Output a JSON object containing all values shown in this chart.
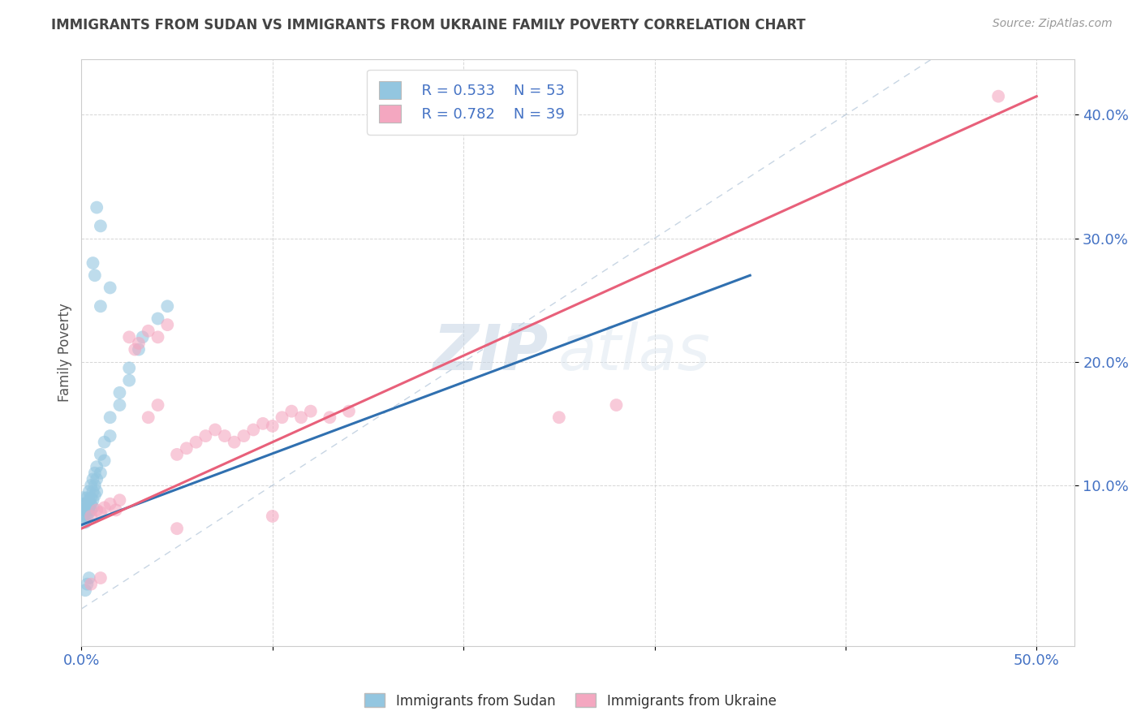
{
  "title": "IMMIGRANTS FROM SUDAN VS IMMIGRANTS FROM UKRAINE FAMILY POVERTY CORRELATION CHART",
  "source": "Source: ZipAtlas.com",
  "ylabel": "Family Poverty",
  "xlim": [
    0.0,
    0.52
  ],
  "ylim": [
    -0.03,
    0.445
  ],
  "sudan_color": "#93c6e0",
  "ukraine_color": "#f4a7c0",
  "sudan_line_color": "#3070b0",
  "ukraine_line_color": "#e8607a",
  "legend_sudan_R": "R = 0.533",
  "legend_sudan_N": "N = 53",
  "legend_ukraine_R": "R = 0.782",
  "legend_ukraine_N": "N = 39",
  "watermark_zip": "ZIP",
  "watermark_atlas": "atlas",
  "sudan_scatter": [
    [
      0.001,
      0.075
    ],
    [
      0.001,
      0.09
    ],
    [
      0.001,
      0.085
    ],
    [
      0.001,
      0.08
    ],
    [
      0.002,
      0.085
    ],
    [
      0.002,
      0.08
    ],
    [
      0.002,
      0.075
    ],
    [
      0.002,
      0.07
    ],
    [
      0.003,
      0.09
    ],
    [
      0.003,
      0.085
    ],
    [
      0.003,
      0.08
    ],
    [
      0.003,
      0.075
    ],
    [
      0.004,
      0.095
    ],
    [
      0.004,
      0.088
    ],
    [
      0.004,
      0.082
    ],
    [
      0.004,
      0.078
    ],
    [
      0.005,
      0.1
    ],
    [
      0.005,
      0.09
    ],
    [
      0.005,
      0.085
    ],
    [
      0.005,
      0.08
    ],
    [
      0.006,
      0.105
    ],
    [
      0.006,
      0.095
    ],
    [
      0.006,
      0.088
    ],
    [
      0.006,
      0.082
    ],
    [
      0.007,
      0.11
    ],
    [
      0.007,
      0.1
    ],
    [
      0.007,
      0.092
    ],
    [
      0.008,
      0.115
    ],
    [
      0.008,
      0.105
    ],
    [
      0.008,
      0.095
    ],
    [
      0.01,
      0.125
    ],
    [
      0.01,
      0.11
    ],
    [
      0.012,
      0.135
    ],
    [
      0.012,
      0.12
    ],
    [
      0.015,
      0.155
    ],
    [
      0.015,
      0.14
    ],
    [
      0.02,
      0.175
    ],
    [
      0.02,
      0.165
    ],
    [
      0.025,
      0.195
    ],
    [
      0.025,
      0.185
    ],
    [
      0.03,
      0.21
    ],
    [
      0.032,
      0.22
    ],
    [
      0.04,
      0.235
    ],
    [
      0.045,
      0.245
    ],
    [
      0.008,
      0.325
    ],
    [
      0.01,
      0.31
    ],
    [
      0.006,
      0.28
    ],
    [
      0.007,
      0.27
    ],
    [
      0.01,
      0.245
    ],
    [
      0.015,
      0.26
    ],
    [
      0.003,
      0.02
    ],
    [
      0.004,
      0.025
    ],
    [
      0.002,
      0.015
    ]
  ],
  "ukraine_scatter": [
    [
      0.005,
      0.075
    ],
    [
      0.008,
      0.08
    ],
    [
      0.01,
      0.078
    ],
    [
      0.012,
      0.082
    ],
    [
      0.015,
      0.085
    ],
    [
      0.018,
      0.08
    ],
    [
      0.02,
      0.088
    ],
    [
      0.025,
      0.22
    ],
    [
      0.028,
      0.21
    ],
    [
      0.03,
      0.215
    ],
    [
      0.035,
      0.225
    ],
    [
      0.04,
      0.22
    ],
    [
      0.045,
      0.23
    ],
    [
      0.05,
      0.125
    ],
    [
      0.055,
      0.13
    ],
    [
      0.06,
      0.135
    ],
    [
      0.065,
      0.14
    ],
    [
      0.07,
      0.145
    ],
    [
      0.075,
      0.14
    ],
    [
      0.08,
      0.135
    ],
    [
      0.085,
      0.14
    ],
    [
      0.09,
      0.145
    ],
    [
      0.095,
      0.15
    ],
    [
      0.1,
      0.148
    ],
    [
      0.105,
      0.155
    ],
    [
      0.11,
      0.16
    ],
    [
      0.115,
      0.155
    ],
    [
      0.12,
      0.16
    ],
    [
      0.13,
      0.155
    ],
    [
      0.14,
      0.16
    ],
    [
      0.035,
      0.155
    ],
    [
      0.04,
      0.165
    ],
    [
      0.25,
      0.155
    ],
    [
      0.28,
      0.165
    ],
    [
      0.05,
      0.065
    ],
    [
      0.1,
      0.075
    ],
    [
      0.48,
      0.415
    ],
    [
      0.005,
      0.02
    ],
    [
      0.01,
      0.025
    ]
  ],
  "sudan_line_x": [
    0.0,
    0.35
  ],
  "sudan_line_y": [
    0.068,
    0.27
  ],
  "ukraine_line_x": [
    0.0,
    0.5
  ],
  "ukraine_line_y": [
    0.065,
    0.415
  ],
  "diag_line_x": [
    0.0,
    0.445
  ],
  "diag_line_y": [
    0.0,
    0.445
  ],
  "grid_color": "#cccccc",
  "title_color": "#444444",
  "axis_label_color": "#555555",
  "tick_color": "#4472c4",
  "background_color": "#ffffff"
}
